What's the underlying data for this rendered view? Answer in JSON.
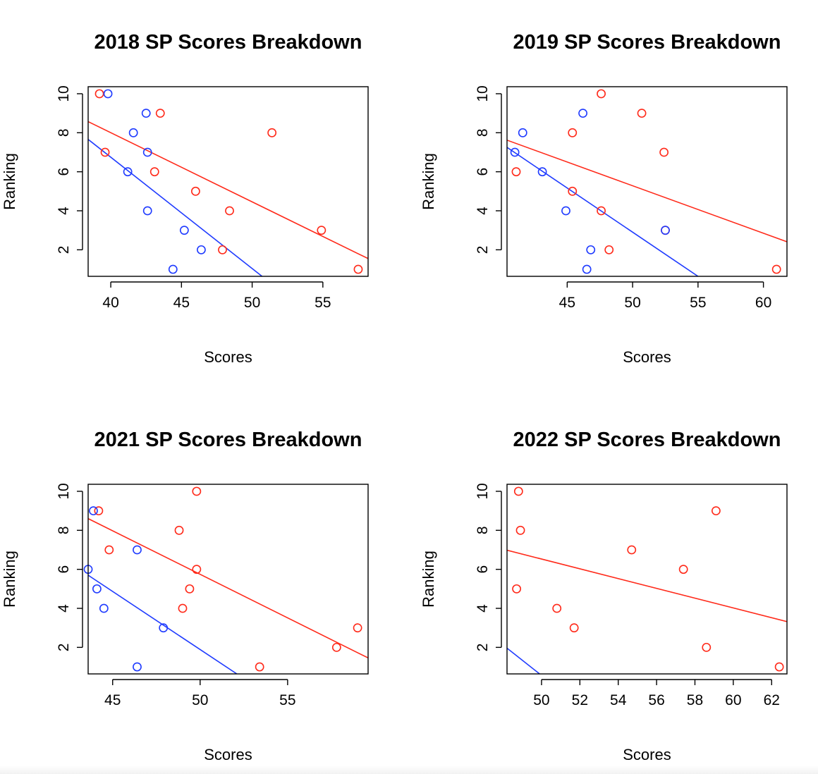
{
  "colors": {
    "series_red": "#ff2a1a",
    "series_blue": "#1f3bff",
    "axis": "#000000"
  },
  "chart_data": [
    {
      "type": "scatter",
      "title": "2018 SP Scores Breakdown",
      "xlabel": "Scores",
      "ylabel": "Ranking",
      "xlim": [
        38.4,
        58.2
      ],
      "ylim": [
        0.64,
        10.36
      ],
      "xticks": [
        40,
        45,
        50,
        55
      ],
      "yticks": [
        2,
        4,
        6,
        8,
        10
      ],
      "series": [
        {
          "color": "red",
          "points": [
            [
              39.2,
              10
            ],
            [
              43.5,
              9
            ],
            [
              51.4,
              8
            ],
            [
              39.6,
              7
            ],
            [
              43.1,
              6
            ],
            [
              46.0,
              5
            ],
            [
              48.4,
              4
            ],
            [
              54.9,
              3
            ],
            [
              47.9,
              2
            ],
            [
              57.5,
              1
            ]
          ],
          "fit": [
            [
              38.4,
              8.57
            ],
            [
              58.2,
              1.55
            ]
          ]
        },
        {
          "color": "blue",
          "points": [
            [
              39.8,
              10
            ],
            [
              42.5,
              9
            ],
            [
              41.6,
              8
            ],
            [
              42.6,
              7
            ],
            [
              41.2,
              6
            ],
            [
              42.6,
              4
            ],
            [
              45.2,
              3
            ],
            [
              46.4,
              2
            ],
            [
              44.4,
              1
            ]
          ],
          "fit": [
            [
              38.4,
              7.66
            ],
            [
              50.7,
              0.64
            ]
          ]
        }
      ]
    },
    {
      "type": "scatter",
      "title": "2019 SP Scores Breakdown",
      "xlabel": "Scores",
      "ylabel": "Ranking",
      "xlim": [
        40.4,
        61.8
      ],
      "ylim": [
        0.64,
        10.36
      ],
      "xticks": [
        45,
        50,
        55,
        60
      ],
      "yticks": [
        2,
        4,
        6,
        8,
        10
      ],
      "series": [
        {
          "color": "red",
          "points": [
            [
              47.6,
              10
            ],
            [
              50.7,
              9
            ],
            [
              45.4,
              8
            ],
            [
              52.4,
              7
            ],
            [
              41.1,
              6
            ],
            [
              45.4,
              5
            ],
            [
              47.6,
              4
            ],
            [
              52.5,
              3
            ],
            [
              48.2,
              2
            ],
            [
              61.0,
              1
            ]
          ],
          "fit": [
            [
              40.4,
              7.62
            ],
            [
              61.8,
              2.41
            ]
          ]
        },
        {
          "color": "blue",
          "points": [
            [
              46.2,
              9
            ],
            [
              41.6,
              8
            ],
            [
              41.0,
              7
            ],
            [
              43.1,
              6
            ],
            [
              44.9,
              4
            ],
            [
              52.5,
              3
            ],
            [
              46.8,
              2
            ],
            [
              46.5,
              1
            ]
          ],
          "fit": [
            [
              40.4,
              7.25
            ],
            [
              55.0,
              0.64
            ]
          ]
        }
      ]
    },
    {
      "type": "scatter",
      "title": "2021 SP Scores Breakdown",
      "xlabel": "Scores",
      "ylabel": "Ranking",
      "xlim": [
        43.6,
        59.6
      ],
      "ylim": [
        0.64,
        10.36
      ],
      "xticks": [
        45,
        50,
        55
      ],
      "yticks": [
        2,
        4,
        6,
        8,
        10
      ],
      "series": [
        {
          "color": "red",
          "points": [
            [
              49.8,
              10
            ],
            [
              44.2,
              9
            ],
            [
              48.8,
              8
            ],
            [
              44.8,
              7
            ],
            [
              49.8,
              6
            ],
            [
              49.4,
              5
            ],
            [
              49.0,
              4
            ],
            [
              59.0,
              3
            ],
            [
              57.8,
              2
            ],
            [
              53.4,
              1
            ]
          ],
          "fit": [
            [
              43.6,
              8.6
            ],
            [
              59.6,
              1.46
            ]
          ]
        },
        {
          "color": "blue",
          "points": [
            [
              43.9,
              9
            ],
            [
              46.4,
              7
            ],
            [
              43.6,
              6
            ],
            [
              44.1,
              5
            ],
            [
              44.5,
              4
            ],
            [
              47.9,
              3
            ],
            [
              46.4,
              1
            ]
          ],
          "fit": [
            [
              43.6,
              5.7
            ],
            [
              52.1,
              0.64
            ]
          ]
        }
      ]
    },
    {
      "type": "scatter",
      "title": "2022 SP Scores Breakdown",
      "xlabel": "Scores",
      "ylabel": "Ranking",
      "xlim": [
        48.2,
        62.8
      ],
      "ylim": [
        0.64,
        10.36
      ],
      "xticks": [
        50,
        52,
        54,
        56,
        58,
        60,
        62
      ],
      "yticks": [
        2,
        4,
        6,
        8,
        10
      ],
      "series": [
        {
          "color": "red",
          "points": [
            [
              48.8,
              10
            ],
            [
              59.1,
              9
            ],
            [
              48.9,
              8
            ],
            [
              54.7,
              7
            ],
            [
              57.4,
              6
            ],
            [
              48.7,
              5
            ],
            [
              50.8,
              4
            ],
            [
              51.7,
              3
            ],
            [
              58.6,
              2
            ],
            [
              62.4,
              1
            ]
          ],
          "fit": [
            [
              48.2,
              6.98
            ],
            [
              62.8,
              3.32
            ]
          ]
        },
        {
          "color": "blue",
          "points": [],
          "fit": [
            [
              48.2,
              1.96
            ],
            [
              49.9,
              0.64
            ]
          ]
        }
      ]
    }
  ]
}
